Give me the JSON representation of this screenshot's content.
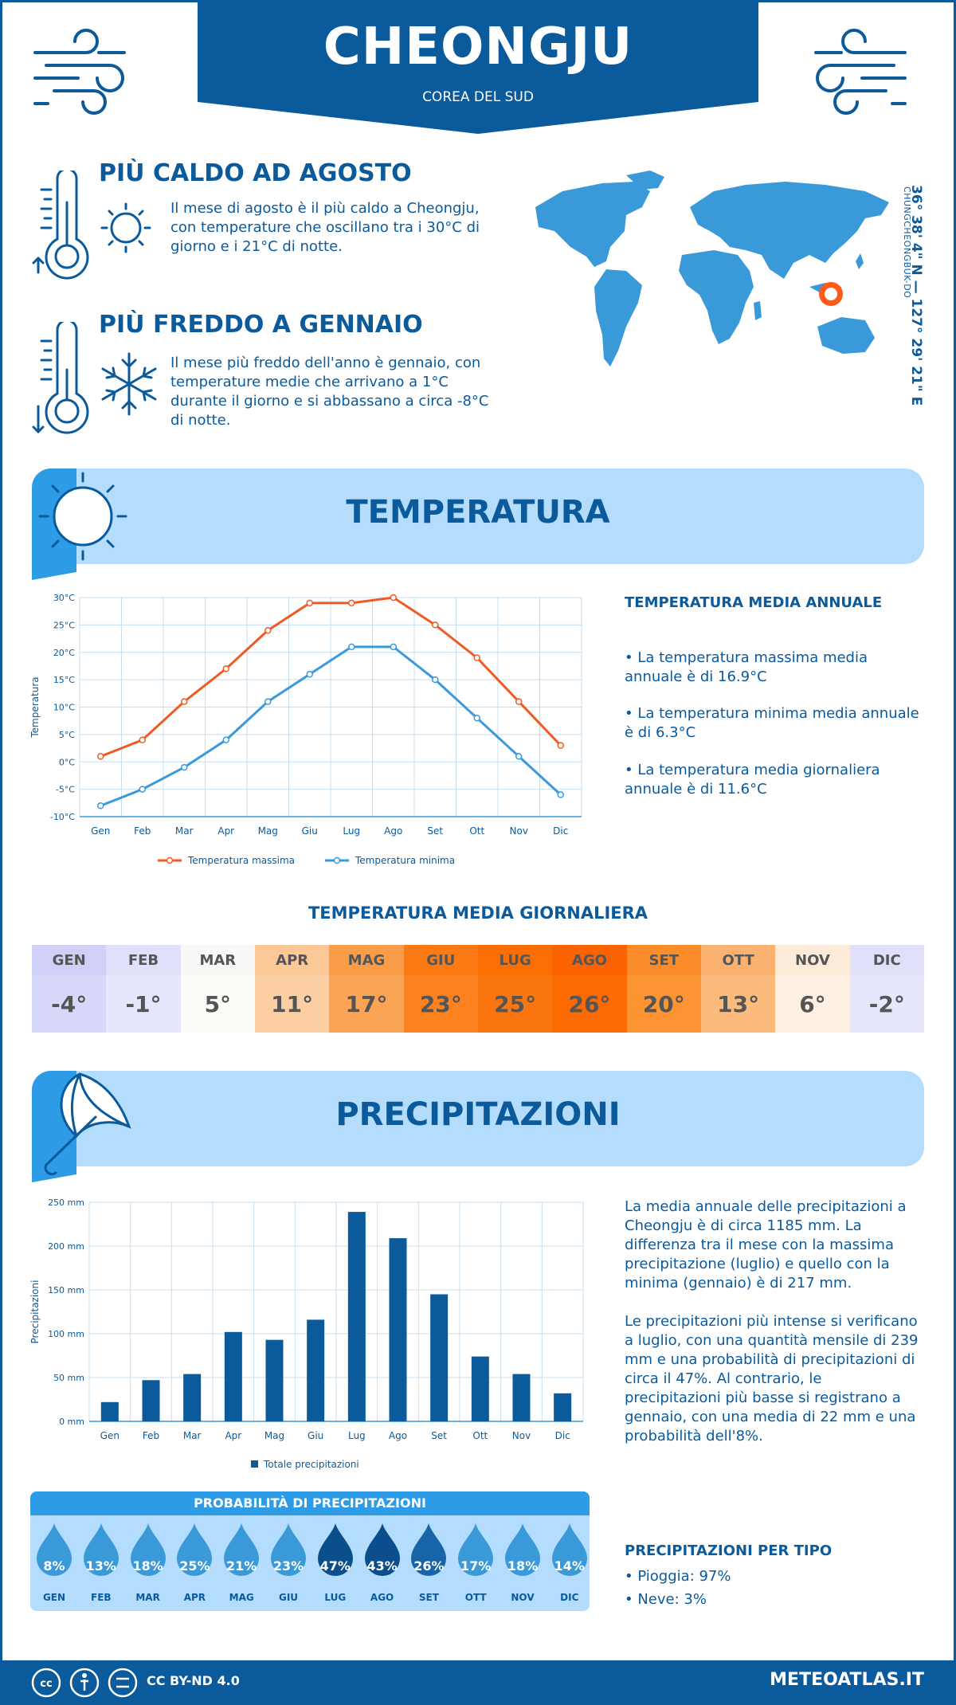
{
  "header": {
    "city": "CHEONGJU",
    "country": "COREA DEL SUD"
  },
  "hot": {
    "title": "PIÙ CALDO AD AGOSTO",
    "text": "Il mese di agosto è il più caldo a Cheongju, con temperature che oscillano tra i 30°C di giorno e i 21°C di notte."
  },
  "cold": {
    "title": "PIÙ FREDDO A GENNAIO",
    "text": "Il mese più freddo dell'anno è gennaio, con temperature medie che arrivano a 1°C durante il giorno e si abbassano a circa -8°C di notte."
  },
  "location": {
    "coords": "36° 38' 4\" N — 127° 29' 21\" E",
    "region": "CHUNGCHEONGBUK-DO"
  },
  "temperature_section": {
    "title": "TEMPERATURA",
    "side_title": "TEMPERATURA MEDIA ANNUALE",
    "bullets": [
      "• La temperatura massima media annuale è di 16.9°C",
      "• La temperatura minima media annuale è di 6.3°C",
      "• La temperatura media giornaliera annuale è di 11.6°C"
    ]
  },
  "daily_section": {
    "title": "TEMPERATURA MEDIA GIORNALIERA",
    "months": [
      "GEN",
      "FEB",
      "MAR",
      "APR",
      "MAG",
      "GIU",
      "LUG",
      "AGO",
      "SET",
      "OTT",
      "NOV",
      "DIC"
    ],
    "values": [
      "-4°",
      "-1°",
      "5°",
      "11°",
      "17°",
      "23°",
      "25°",
      "26°",
      "20°",
      "13°",
      "6°",
      "-2°"
    ],
    "colors": [
      "#d8d8fb",
      "#e6e6fd",
      "#fdfbf8",
      "#fdd0a4",
      "#fca456",
      "#fc8220",
      "#fc760f",
      "#fc6a02",
      "#fc9434",
      "#fcba7c",
      "#fdf0e2",
      "#e6e6fd"
    ],
    "label_colors": [
      "#cfcff8",
      "#e0e0fb",
      "#faf8f6",
      "#fcc898",
      "#fb9c48",
      "#fb7a14",
      "#fb6e04",
      "#fb6200",
      "#fb8c2a",
      "#fbb270",
      "#fcebd8",
      "#e0e0fb"
    ]
  },
  "precip_section": {
    "title": "PRECIPITAZIONI",
    "text1": "La media annuale delle precipitazioni a Cheongju è di circa 1185 mm. La differenza tra il mese con la massima precipitazione (luglio) e quello con la minima (gennaio) è di 217 mm.",
    "text2": "Le precipitazioni più intense si verificano a luglio, con una quantità mensile di 239 mm e una probabilità di precipitazioni di circa il 47%. Al contrario, le precipitazioni più basse si registrano a gennaio, con una media di 22 mm e una probabilità dell'8%.",
    "prob_title": "PROBABILITÀ DI PRECIPITAZIONI",
    "prob_months": [
      "GEN",
      "FEB",
      "MAR",
      "APR",
      "MAG",
      "GIU",
      "LUG",
      "AGO",
      "SET",
      "OTT",
      "NOV",
      "DIC"
    ],
    "prob_values": [
      "8%",
      "13%",
      "18%",
      "25%",
      "21%",
      "23%",
      "47%",
      "43%",
      "26%",
      "17%",
      "18%",
      "14%"
    ],
    "type_title": "PRECIPITAZIONI PER TIPO",
    "types": [
      "• Pioggia: 97%",
      "• Neve: 3%"
    ]
  },
  "chart_data": [
    {
      "type": "line",
      "x": [
        "Gen",
        "Feb",
        "Mar",
        "Apr",
        "Mag",
        "Giu",
        "Lug",
        "Ago",
        "Set",
        "Ott",
        "Nov",
        "Dic"
      ],
      "series": [
        {
          "name": "Temperatura massima",
          "values": [
            1,
            4,
            11,
            17,
            24,
            29,
            29,
            30,
            25,
            19,
            11,
            3
          ],
          "color": "#f05a22"
        },
        {
          "name": "Temperatura minima",
          "values": [
            -8,
            -5,
            -1,
            4,
            11,
            16,
            21,
            21,
            15,
            8,
            1,
            -6
          ],
          "color": "#3a9ad9"
        }
      ],
      "ylabel": "Temperatura",
      "ylim": [
        -10,
        30
      ],
      "yticks": [
        "30°C",
        "25°C",
        "20°C",
        "15°C",
        "10°C",
        "5°C",
        "0°C",
        "-5°C",
        "-10°C"
      ],
      "grid": true,
      "legend": "bottom"
    },
    {
      "type": "bar",
      "categories": [
        "Gen",
        "Feb",
        "Mar",
        "Apr",
        "Mag",
        "Giu",
        "Lug",
        "Ago",
        "Set",
        "Ott",
        "Nov",
        "Dic"
      ],
      "series": [
        {
          "name": "Totale precipitazioni",
          "values": [
            22,
            47,
            54,
            102,
            93,
            116,
            239,
            209,
            145,
            74,
            54,
            32
          ],
          "color": "#0a5a9c"
        }
      ],
      "ylabel": "Precipitazioni",
      "ylim": [
        0,
        250
      ],
      "yticks": [
        "250 mm",
        "200 mm",
        "150 mm",
        "100 mm",
        "50 mm",
        "0 mm"
      ],
      "grid": true,
      "legend": "bottom"
    }
  ],
  "footer": {
    "license": "CC BY-ND 4.0",
    "site": "METEOATLAS.IT"
  }
}
